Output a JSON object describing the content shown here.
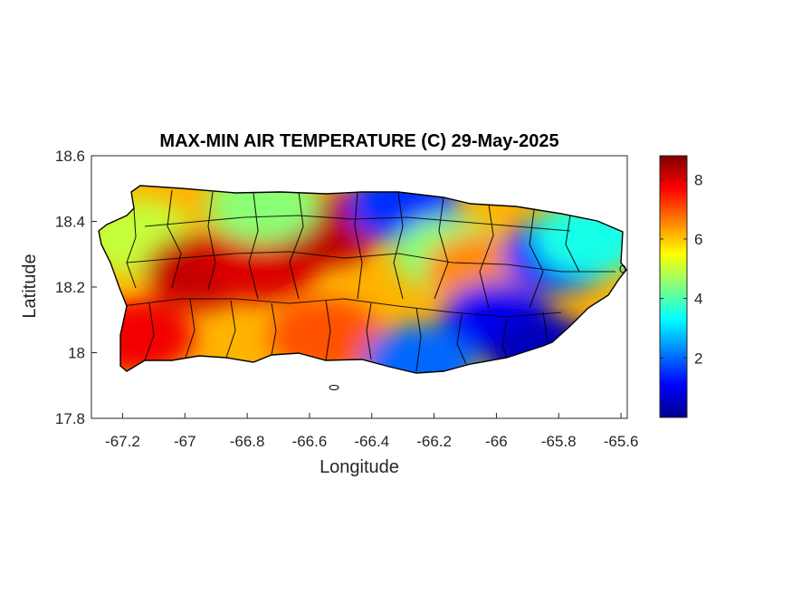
{
  "chart_data": {
    "type": "heatmap",
    "title": "MAX-MIN AIR TEMPERATURE (C) 29-May-2025",
    "xlabel": "Longitude",
    "ylabel": "Latitude",
    "xlim": [
      -67.3,
      -65.58
    ],
    "ylim": [
      17.8,
      18.6
    ],
    "x_ticks": [
      -67.2,
      -67.0,
      -66.8,
      -66.6,
      -66.4,
      -66.2,
      -66.0,
      -65.8,
      -65.6
    ],
    "x_tick_labels": [
      "-67.2",
      "-67",
      "-66.8",
      "-66.6",
      "-66.4",
      "-66.2",
      "-66",
      "-65.8",
      "-65.6"
    ],
    "y_ticks": [
      17.8,
      18.0,
      18.2,
      18.4,
      18.6
    ],
    "y_tick_labels": [
      "17.8",
      "18",
      "18.2",
      "18.4",
      "18.6"
    ],
    "colorbar": {
      "colormap": "jet",
      "range": [
        0,
        8.8
      ],
      "ticks": [
        2,
        4,
        6,
        8
      ],
      "tick_labels": [
        "2",
        "4",
        "6",
        "8"
      ]
    },
    "grid": false,
    "field_samples": [
      {
        "lon": -67.15,
        "lat": 18.05,
        "value": 7.8
      },
      {
        "lon": -67.15,
        "lat": 18.35,
        "value": 5.0
      },
      {
        "lon": -66.95,
        "lat": 18.25,
        "value": 8.2
      },
      {
        "lon": -66.75,
        "lat": 18.27,
        "value": 8.0
      },
      {
        "lon": -66.55,
        "lat": 18.38,
        "value": 8.3
      },
      {
        "lon": -66.55,
        "lat": 18.05,
        "value": 7.0
      },
      {
        "lon": -66.75,
        "lat": 18.45,
        "value": 4.5
      },
      {
        "lon": -66.3,
        "lat": 18.45,
        "value": 1.5
      },
      {
        "lon": -66.15,
        "lat": 18.3,
        "value": 4.5
      },
      {
        "lon": -66.05,
        "lat": 18.25,
        "value": 6.5
      },
      {
        "lon": -66.0,
        "lat": 18.1,
        "value": 1.0
      },
      {
        "lon": -65.85,
        "lat": 18.0,
        "value": 0.5
      },
      {
        "lon": -65.8,
        "lat": 18.3,
        "value": 1.5
      },
      {
        "lon": -65.7,
        "lat": 18.35,
        "value": 3.5
      },
      {
        "lon": -66.25,
        "lat": 17.97,
        "value": 2.0
      }
    ]
  }
}
